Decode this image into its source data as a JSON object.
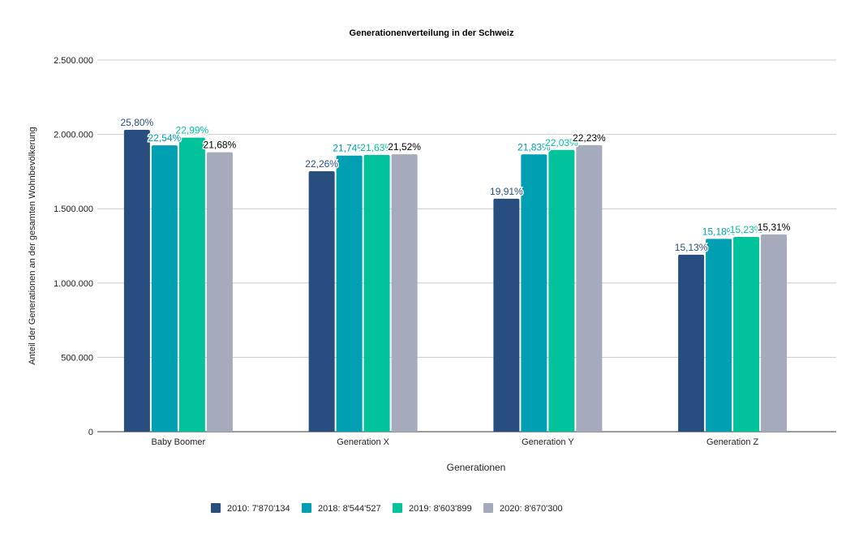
{
  "chart_data": {
    "type": "bar",
    "title": "Generationenverteilung in der Schweiz",
    "xlabel": "Generationen",
    "ylabel": "Anteil der Generationen an der gesamten Wohnbevölkerung",
    "categories": [
      "Baby Boomer",
      "Generation X",
      "Generation Y",
      "Generation Z"
    ],
    "ylim": [
      0,
      2500000
    ],
    "yticks": [
      "0",
      "500.000",
      "1.000.000",
      "1.500.000",
      "2.000.000",
      "2.500.000"
    ],
    "grid": true,
    "legend_position": "bottom",
    "series": [
      {
        "name": "2010: 7'870'134",
        "color": "#284e80",
        "label_color": "#284e80",
        "values": [
          2030495,
          1751892,
          1566944,
          1190751
        ],
        "labels": [
          "25,80%",
          "22,26%",
          "19,91%",
          "15,13%"
        ]
      },
      {
        "name": "2018: 8'544'527",
        "color": "#009fb1",
        "label_color": "#009fb1",
        "values": [
          1925936,
          1857580,
          1865270,
          1297059
        ],
        "labels": [
          "22,54%",
          "21,74%",
          "21,83%",
          "15,18%"
        ]
      },
      {
        "name": "2019: 8'603'899",
        "color": "#00c39b",
        "label_color": "#00c39b",
        "values": [
          1978036,
          1861023,
          1895439,
          1310374
        ],
        "labels": [
          "22,99%",
          "21,63%",
          "22,03%",
          "15,23%"
        ]
      },
      {
        "name": "2020: 8'670'300",
        "color": "#a5aabd",
        "label_color": "#000000",
        "values": [
          1879721,
          1865849,
          1927408,
          1327423
        ],
        "labels": [
          "21,68%",
          "21,52%",
          "22,23%",
          "15,31%"
        ]
      }
    ]
  }
}
